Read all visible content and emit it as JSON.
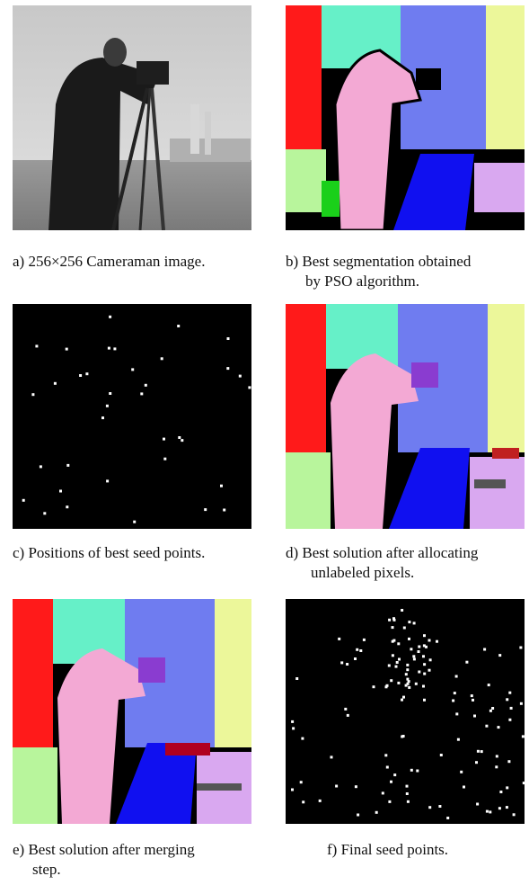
{
  "figure": {
    "panels": [
      {
        "id": "a",
        "caption_lines": [
          "a) 256×256 Cameraman image."
        ]
      },
      {
        "id": "b",
        "caption_lines": [
          "b) Best segmentation obtained",
          "by PSO algorithm."
        ]
      },
      {
        "id": "c",
        "caption_lines": [
          "c) Positions of best seed points."
        ]
      },
      {
        "id": "d",
        "caption_lines": [
          "d) Best solution after allocating",
          "unlabeled pixels."
        ]
      },
      {
        "id": "e",
        "caption_lines": [
          "e) Best solution after merging",
          "step."
        ]
      },
      {
        "id": "f",
        "caption_lines": [
          "f) Final seed points."
        ]
      }
    ],
    "colors": {
      "red": "#ff1a1a",
      "turquoise": "#66f0c8",
      "periwinkle": "#6f7cf0",
      "pale_yellow": "#ecf79a",
      "pink": "#f3a9d4",
      "blue": "#1010f0",
      "light_green": "#b8f59c",
      "lavender": "#d9a8f0",
      "black": "#000000",
      "white": "#ffffff"
    }
  }
}
